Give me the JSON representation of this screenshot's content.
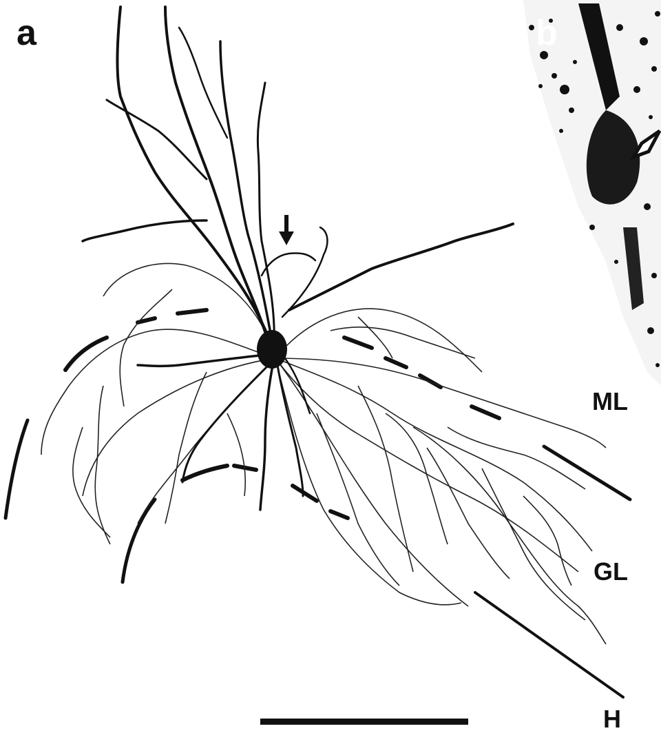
{
  "figure": {
    "panel_a": {
      "letter": "a"
    },
    "panel_b": {
      "letter": "b"
    },
    "layers": {
      "molecular": "ML",
      "granular": "GL",
      "hilus": "H"
    }
  }
}
